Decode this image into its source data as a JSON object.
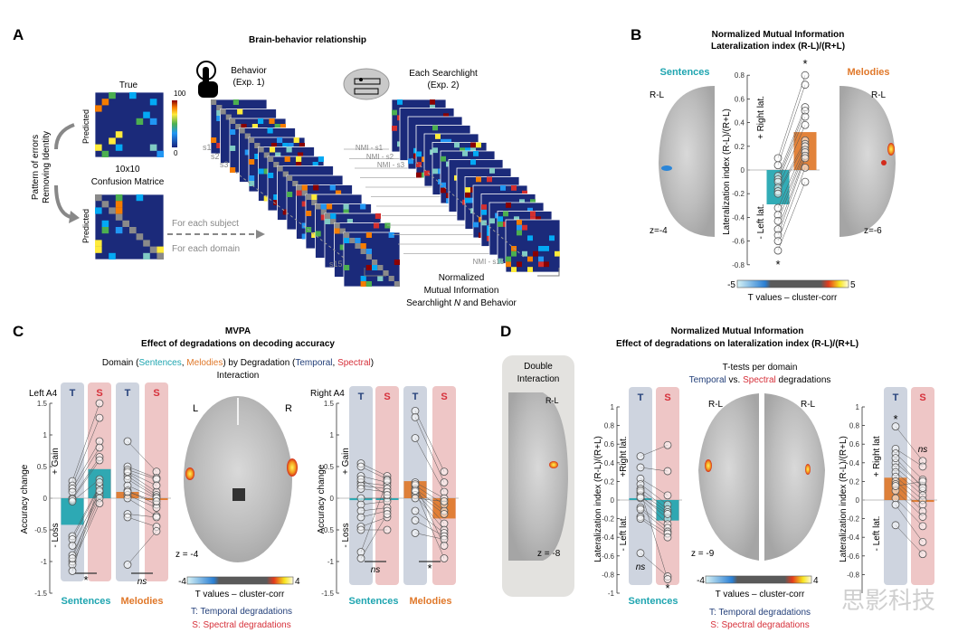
{
  "panels": {
    "A": {
      "label": "A",
      "title": "Brain-behavior relationship",
      "matrix_true_label": "True",
      "predicted_label": "Predicted",
      "colorbar_max": "100",
      "colorbar_min": "0",
      "matrix_caption_1": "10x10",
      "matrix_caption_2": "Confusion Matrice",
      "side_label_1": "Pattern of errors",
      "side_label_2": "Removing Identity",
      "for_each_subject": "For each subject",
      "for_each_domain": "For each domain",
      "behavior_1": "Behavior",
      "behavior_2": "(Exp. 1)",
      "searchlight_1": "Each Searchlight",
      "searchlight_2": "(Exp. 2)",
      "subjects": [
        "s1",
        "s2",
        "s3",
        "s15"
      ],
      "nmi_labels": [
        "NMI - s1",
        "NMI - s2",
        "NMI - s3",
        "NMI - s15"
      ],
      "nmi_caption_1": "Normalized",
      "nmi_caption_2": "Mutual Information",
      "nmi_caption_3a": "Searchlight ",
      "nmi_caption_3b": "N",
      "nmi_caption_3c": " and Behavior"
    },
    "B": {
      "label": "B",
      "title_1": "Normalized Mutual Information",
      "title_2": "Lateralization index (R-L)/(R+L)",
      "sentences": "Sentences",
      "melodies": "Melodies",
      "rl": "R-L",
      "z_left": "z=-4",
      "z_right": "z=-6",
      "right_lat": "+ Right lat.",
      "left_lat": "- Left lat.",
      "cb_min": "-5",
      "cb_max": "5",
      "cb_label": "T values – cluster-corr"
    },
    "C": {
      "label": "C",
      "title_1": "MVPA",
      "title_2": "Effect of degradations on decoding accuracy",
      "sub_domain": "Domain (",
      "sub_sentences": "Sentences",
      "sub_comma": ", ",
      "sub_melodies": "Melodies",
      "sub_by": ") by Degradation  (",
      "sub_temporal": "Temporal",
      "sub_spectral": "Spectral",
      "sub_close": ")",
      "sub_interaction": "Interaction",
      "left_roi": "Left A4",
      "right_roi": "Right A4",
      "gain": "+ Gain",
      "loss": "- Loss",
      "brain_L": "L",
      "brain_R": "R",
      "z": "z = -4",
      "cb_min": "-4",
      "cb_max": "4",
      "cb_label": "T values – cluster-corr",
      "legend_T": "T: Temporal degradations",
      "legend_S": "S: Spectral degradations"
    },
    "D": {
      "label": "D",
      "title_1": "Normalized Mutual Information",
      "title_2": "Effect of degradations on lateralization index (R-L)/(R+L)",
      "double_1": "Double",
      "double_2": "Interaction",
      "rl": "R-L",
      "z_double": "z = -8",
      "z_center": "z = -9",
      "ttest_1": "T-tests per domain",
      "ttest_temporal": "Temporal",
      "ttest_vs": " vs. ",
      "ttest_spectral": "Spectral",
      "ttest_end": " degradations",
      "right_lat_left": "+Right lat.",
      "right_lat_right": "+ Right lat",
      "left_lat": "- Left lat.",
      "cb_min": "-4",
      "cb_max": "4",
      "cb_label": "T values – cluster-corr",
      "legend_T": "T: Temporal degradations",
      "legend_S": "S: Spectral degradations"
    }
  },
  "watermark": "思影科技",
  "colors": {
    "sentences": "#1fa5b0",
    "melodies": "#e0782a",
    "temporal": "#24407a",
    "spectral": "#d6303a",
    "temporal_bg": "#c5cdd9",
    "spectral_bg": "#ebbcbc"
  },
  "chart_data": [
    {
      "type": "bar",
      "panel": "B",
      "title": "Normalized Mutual Information Lateralization index (R-L)/(R+L)",
      "ylabel": "Lateralization index (R-L)/(R+L)",
      "ylim": [
        -0.8,
        0.8
      ],
      "yticks": [
        "-0.8",
        "-0.6",
        "-0.4",
        "-0.2",
        "0",
        "0.2",
        "0.4",
        "0.6",
        "0.8"
      ],
      "categories": [
        "Sentences",
        "Melodies"
      ],
      "values": [
        -0.29,
        0.32
      ],
      "points": [
        [
          0.1,
          0.04,
          -0.05,
          -0.08,
          -0.1,
          -0.15,
          -0.18,
          -0.2,
          -0.32,
          -0.38,
          -0.43,
          -0.5,
          -0.55,
          -0.6,
          -0.68
        ],
        [
          0.8,
          0.72,
          0.53,
          0.5,
          0.45,
          0.38,
          0.25,
          0.22,
          0.2,
          0.17,
          0.15,
          0.12,
          0.1,
          0.02,
          -0.1
        ]
      ],
      "significance": [
        "*",
        "*"
      ]
    },
    {
      "type": "bar",
      "panel": "C-left",
      "title": "Left A4",
      "ylabel": "Accuracy change",
      "ylim": [
        -1.5,
        1.5
      ],
      "yticks": [
        "-1.5",
        "-1",
        "-0.5",
        "0",
        "0.5",
        "1",
        "1.5"
      ],
      "groups": [
        "Sentences",
        "Melodies"
      ],
      "categories": [
        "T",
        "S",
        "T",
        "S"
      ],
      "values": [
        -0.42,
        0.46,
        0.1,
        0.0
      ],
      "points": [
        [
          0.27,
          0.2,
          0.15,
          0.1,
          0,
          -0.02,
          -0.05,
          -0.6,
          -0.65,
          -0.75,
          -0.9,
          -1.0,
          -1.05,
          -1.15,
          -0.95
        ],
        [
          1.5,
          1.27,
          0.9,
          0.8,
          0.65,
          0.6,
          0.3,
          0.2,
          0.18,
          0.1,
          0.05,
          0,
          -0.08,
          0.25,
          0.12
        ],
        [
          0.9,
          0.5,
          0.45,
          0.4,
          0.35,
          0.3,
          0.2,
          0.12,
          0.05,
          0,
          -0.25,
          -0.3,
          -1.05,
          0.42,
          0.1
        ],
        [
          0.42,
          0.32,
          0.3,
          0.1,
          0.05,
          0.02,
          0,
          -0.1,
          -0.15,
          -0.28,
          -0.3,
          -0.45,
          -0.52,
          0.2,
          -0.05
        ]
      ],
      "significance": [
        "*",
        "ns"
      ]
    },
    {
      "type": "bar",
      "panel": "C-right",
      "title": "Right A4",
      "ylabel": "Accuracy change",
      "ylim": [
        -1.5,
        1.5
      ],
      "yticks": [
        "-1.5",
        "-1",
        "-0.5",
        "0",
        "0.5",
        "1",
        "1.5"
      ],
      "groups": [
        "Sentences",
        "Melodies"
      ],
      "categories": [
        "T",
        "S",
        "T",
        "S"
      ],
      "values": [
        -0.03,
        0.0,
        0.27,
        -0.32
      ],
      "points": [
        [
          0.55,
          0.5,
          0.35,
          0.25,
          0.2,
          0.15,
          0,
          -0.1,
          -0.2,
          -0.3,
          -0.45,
          -0.5,
          -0.85,
          -0.95,
          0.3
        ],
        [
          0.35,
          0.3,
          0.25,
          0.2,
          0.15,
          0.1,
          0,
          -0.05,
          -0.15,
          -0.2,
          -0.3,
          -0.5,
          0.28,
          -0.25,
          0.05
        ],
        [
          1.38,
          1.28,
          0.95,
          0.25,
          0.2,
          0.15,
          0.1,
          0.1,
          0.05,
          -0.2,
          -0.35,
          -0.55,
          0.22,
          0.12,
          0
        ],
        [
          0.42,
          0.25,
          0.1,
          0,
          -0.1,
          -0.2,
          -0.25,
          -0.4,
          -0.5,
          -0.55,
          -0.6,
          -0.65,
          -0.75,
          -0.95,
          -0.05
        ]
      ],
      "significance": [
        "ns",
        "*"
      ]
    },
    {
      "type": "bar",
      "panel": "D-left",
      "ylabel": "Lateralization index (R-L)/(R+L)",
      "ylim": [
        -1,
        1
      ],
      "yticks": [
        "-1",
        "-0.8",
        "-0.6",
        "-0.4",
        "-0.2",
        "0",
        "0.2",
        "0.4",
        "0.6",
        "0.8",
        "1"
      ],
      "groups": [
        "Sentences"
      ],
      "categories": [
        "T",
        "S"
      ],
      "values": [
        0.02,
        -0.22
      ],
      "points": [
        [
          0.47,
          0.35,
          0.23,
          0.17,
          0.12,
          0.08,
          0.05,
          0.02,
          -0.08,
          -0.1,
          -0.18,
          -0.2,
          -0.57,
          0.1,
          0.03
        ],
        [
          0.59,
          0.31,
          0.05,
          -0.05,
          -0.1,
          -0.13,
          -0.2,
          -0.26,
          -0.3,
          -0.34,
          -0.36,
          -0.4,
          -0.82,
          -0.85,
          -0.15
        ]
      ],
      "significance": [
        "ns",
        "*"
      ]
    },
    {
      "type": "bar",
      "panel": "D-right",
      "ylabel": "Lateralization index (R-L)/(R+L)",
      "ylim": [
        -1,
        1
      ],
      "yticks": [
        "-0.8",
        "-0.6",
        "-0.4",
        "-0.2",
        "0",
        "0.2",
        "0.4",
        "0.6",
        "0.8",
        "1"
      ],
      "groups": [
        "Melodies"
      ],
      "categories": [
        "T",
        "S"
      ],
      "values": [
        0.24,
        -0.02
      ],
      "points": [
        [
          0.79,
          0.55,
          0.5,
          0.4,
          0.35,
          0.3,
          0.25,
          0.2,
          0.17,
          0.1,
          0.02,
          -0.05,
          -0.27,
          0.15,
          0.45
        ],
        [
          0.42,
          0.36,
          0.22,
          0.15,
          0.1,
          0.05,
          0,
          -0.05,
          -0.12,
          -0.18,
          -0.28,
          -0.45,
          -0.58,
          0.2,
          0.13
        ]
      ],
      "significance": [
        "*",
        "ns"
      ]
    }
  ]
}
